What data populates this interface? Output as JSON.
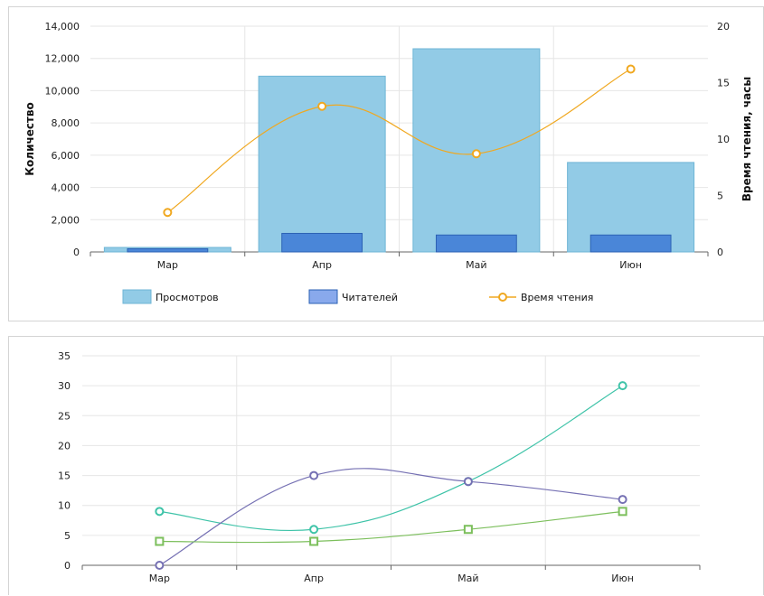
{
  "chart_data": [
    {
      "type": "bar",
      "categories": [
        "Мар",
        "Апр",
        "Май",
        "Июн"
      ],
      "ylabel": "Количество",
      "y2label": "Время чтения, часы",
      "ylim": [
        0,
        14000
      ],
      "y2lim": [
        0,
        20
      ],
      "yticks": [
        "0",
        "2,000",
        "4,000",
        "6,000",
        "8,000",
        "10,000",
        "12,000",
        "14,000"
      ],
      "y2ticks": [
        "0",
        "5",
        "10",
        "15",
        "20"
      ],
      "grid": true,
      "legend_position": "bottom",
      "series": [
        {
          "name": "Просмотров",
          "type": "bar",
          "axis": "left",
          "color": "#92cbe6",
          "stroke": "#6fb6d6",
          "values": [
            280,
            10900,
            12600,
            5550
          ]
        },
        {
          "name": "Читателей",
          "type": "bar",
          "axis": "left",
          "color": "#4a86d8",
          "stroke": "#2c62b4",
          "values": [
            200,
            1150,
            1050,
            1050
          ]
        },
        {
          "name": "Время чтения",
          "type": "line",
          "axis": "right",
          "color": "#f0a820",
          "values": [
            3.5,
            12.9,
            8.7,
            16.2
          ]
        }
      ]
    },
    {
      "type": "line",
      "categories": [
        "Мар",
        "Апр",
        "Май",
        "Июн"
      ],
      "ylim": [
        0,
        35
      ],
      "yticks": [
        "0",
        "5",
        "10",
        "15",
        "20",
        "25",
        "30",
        "35"
      ],
      "grid": true,
      "series": [
        {
          "color": "#3ec3a8",
          "marker": "circle",
          "values": [
            9,
            6,
            14,
            30
          ]
        },
        {
          "color": "#7570b3",
          "marker": "circle",
          "values": [
            0,
            15,
            14,
            11
          ]
        },
        {
          "color": "#7cbf5c",
          "marker": "square",
          "values": [
            4,
            4,
            6,
            9
          ]
        }
      ]
    }
  ]
}
